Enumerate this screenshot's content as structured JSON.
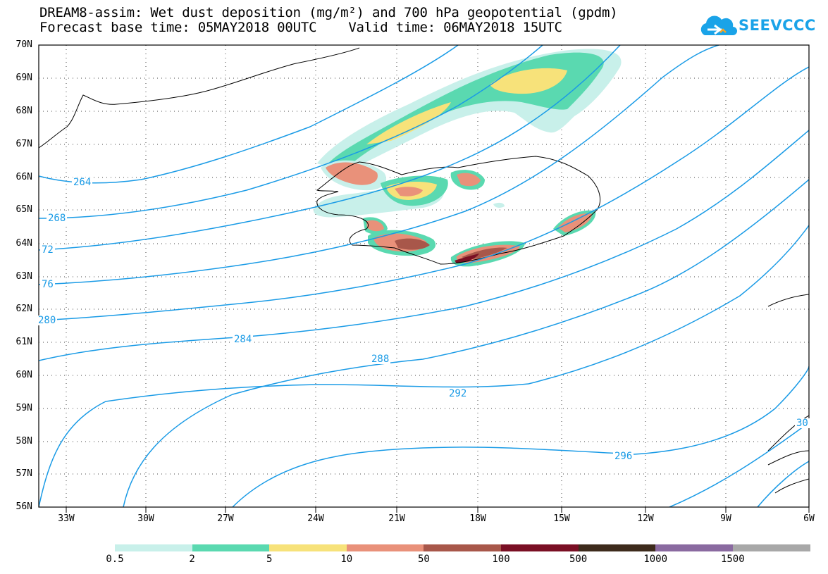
{
  "header": {
    "title_line1": "DREAM8-assim: Wet dust deposition (mg/m²) and 700 hPa geopotential (gpdm)",
    "title_line2": "Forecast base time: 05MAY2018 00UTC    Valid time: 06MAY2018 15UTC",
    "logo_text": "SEEVCCC"
  },
  "map": {
    "lat_labels": [
      "70N",
      "69N",
      "68N",
      "67N",
      "66N",
      "65N",
      "64N",
      "63N",
      "62N",
      "61N",
      "60N",
      "59N",
      "58N",
      "57N",
      "56N"
    ],
    "lon_labels": [
      "33W",
      "30W",
      "27W",
      "24W",
      "21W",
      "18W",
      "15W",
      "12W",
      "9W",
      "6W"
    ],
    "contour_labels": [
      "264",
      "268",
      "72",
      "76",
      "280",
      "284",
      "288",
      "292",
      "296",
      "30"
    ],
    "contour_color": "#1a9be6"
  },
  "colorbar": {
    "colors": [
      "#c8f0ea",
      "#5ad9b0",
      "#f7e27a",
      "#e9917a",
      "#a8574a",
      "#7a0f24",
      "#3d2b1c",
      "#8a6aa0",
      "#a8a8a8"
    ],
    "labels": [
      "0.5",
      "2",
      "5",
      "10",
      "50",
      "100",
      "500",
      "1000",
      "1500"
    ]
  }
}
